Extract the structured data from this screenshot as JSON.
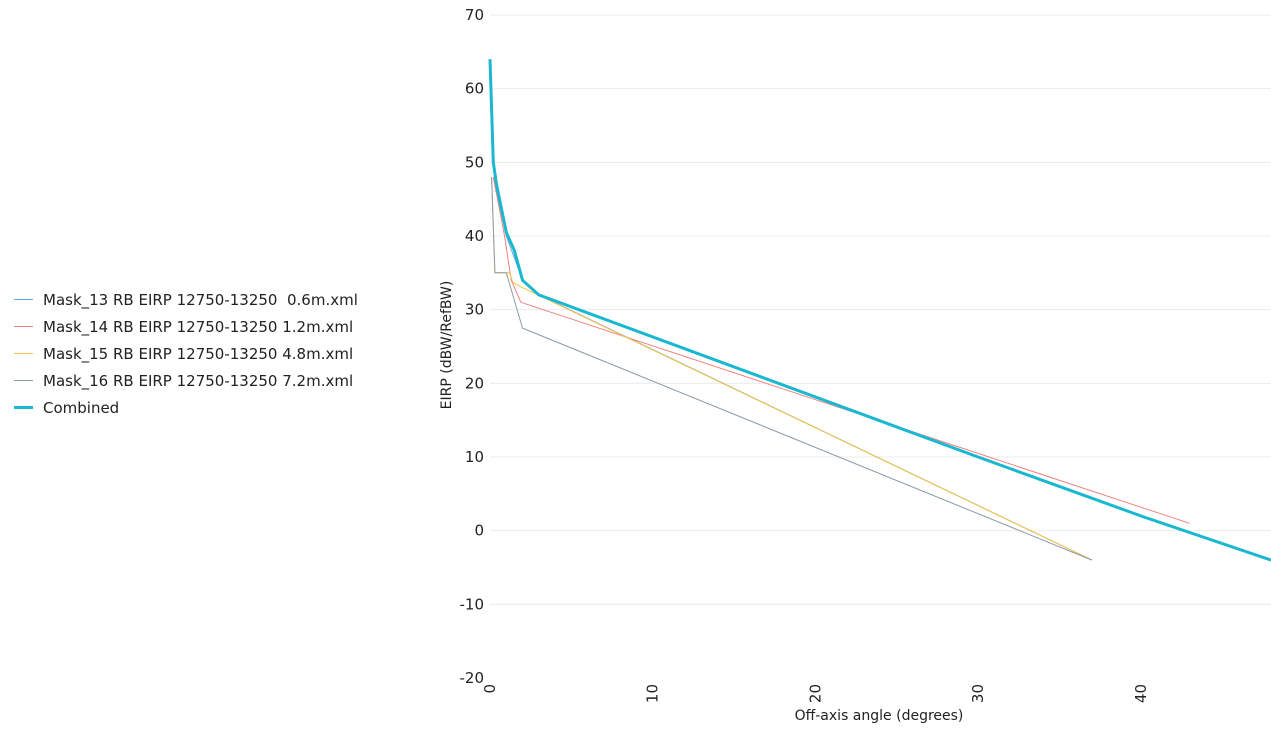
{
  "chart_data": {
    "type": "line",
    "title": "",
    "xlabel": "Off-axis angle (degrees)",
    "ylabel": "EIRP (dBW/RefBW)",
    "xlim": [
      0,
      48
    ],
    "ylim": [
      -20,
      70
    ],
    "xticks": [
      0,
      10,
      20,
      30,
      40
    ],
    "yticks": [
      -20,
      -10,
      0,
      10,
      20,
      30,
      40,
      50,
      60,
      70
    ],
    "grid": "horizontal",
    "legend_position": "left",
    "series": [
      {
        "name": "Mask_13 RB EIRP 12750-13250  0.6m.xml",
        "color": "#6fa8dc",
        "width": 1,
        "points": [
          [
            0.2,
            48
          ],
          [
            1,
            40
          ],
          [
            2,
            34
          ],
          [
            3,
            32
          ],
          [
            37,
            -4
          ]
        ]
      },
      {
        "name": "Mask_14 RB EIRP 12750-13250 1.2m.xml",
        "color": "#f08080",
        "width": 1,
        "points": [
          [
            0.2,
            48
          ],
          [
            0.9,
            40
          ],
          [
            1.3,
            34
          ],
          [
            1.9,
            31
          ],
          [
            43,
            1
          ]
        ]
      },
      {
        "name": "Mask_15 RB EIRP 12750-13250 4.8m.xml",
        "color": "#f5c242",
        "width": 1,
        "points": [
          [
            0.1,
            48
          ],
          [
            0.3,
            35
          ],
          [
            1.2,
            35
          ],
          [
            1.4,
            33.7
          ],
          [
            2,
            33
          ],
          [
            37,
            -4
          ]
        ]
      },
      {
        "name": "Mask_16 RB EIRP 12750-13250 7.2m.xml",
        "color": "#8a9ba8",
        "width": 1,
        "points": [
          [
            0.1,
            48
          ],
          [
            0.3,
            35
          ],
          [
            1,
            35
          ],
          [
            2,
            27.5
          ],
          [
            37,
            -4
          ]
        ]
      },
      {
        "name": "Combined",
        "color": "#1ab8d0",
        "width": 3,
        "points": [
          [
            0,
            64
          ],
          [
            0.2,
            50
          ],
          [
            0.4,
            47
          ],
          [
            1,
            40.5
          ],
          [
            1.5,
            38
          ],
          [
            2,
            34
          ],
          [
            3,
            32
          ],
          [
            30,
            10
          ],
          [
            40,
            2
          ],
          [
            48,
            -4
          ]
        ]
      }
    ]
  }
}
